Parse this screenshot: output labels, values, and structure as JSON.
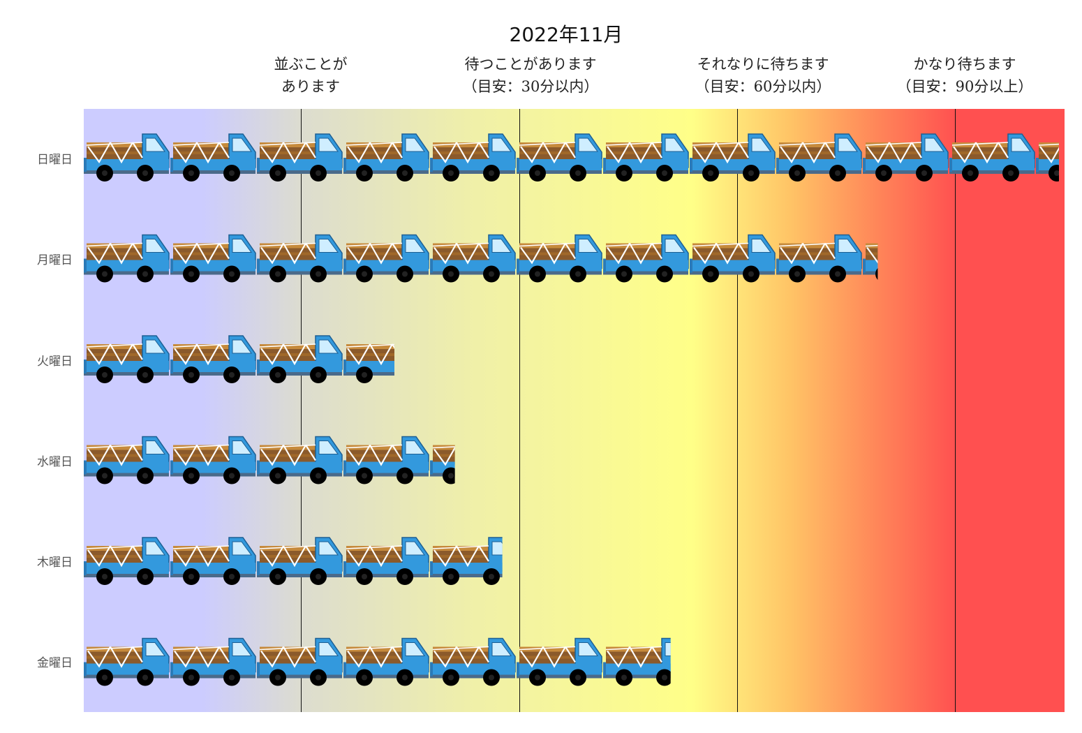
{
  "chart_data": {
    "type": "bar",
    "orientation": "horizontal",
    "title": "2022年11月",
    "categories": [
      "日曜日",
      "月曜日",
      "火曜日",
      "水曜日",
      "木曜日",
      "金曜日"
    ],
    "values": [
      11.3,
      9.2,
      3.6,
      4.3,
      4.85,
      6.8
    ],
    "unit_icon": "truck-icon",
    "xlim": [
      0,
      11.3
    ],
    "zones": [
      {
        "line1": "並ぶことが",
        "line2": "あります",
        "threshold": 2.5
      },
      {
        "line1": "待つことがあります",
        "line2": "（目安：30分以内）",
        "threshold": 5.0
      },
      {
        "line1": "それなりに待ちます",
        "line2": "（目安：60分以内）",
        "threshold": 7.5
      },
      {
        "line1": "かなり待ちます",
        "line2": "（目安：90分以上）",
        "threshold": 10.0
      }
    ],
    "background_colors": [
      "#ccccff",
      "#ffff88",
      "#ff5050"
    ],
    "truck_colors": {
      "body": "#3399dd",
      "cargo": "#8b5a2b",
      "wheel": "#000000"
    }
  }
}
